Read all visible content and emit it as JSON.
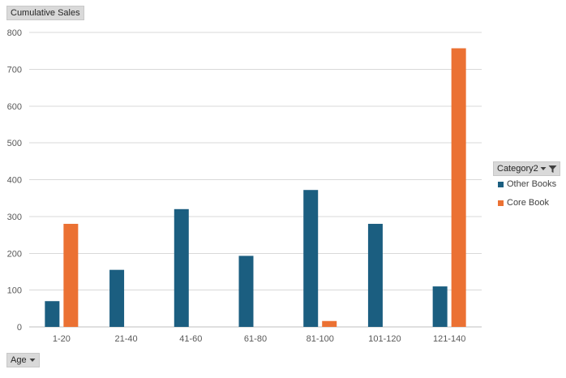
{
  "chart_data": {
    "type": "bar",
    "title": "",
    "xlabel": "",
    "ylabel": "",
    "categories": [
      "1-20",
      "21-40",
      "41-60",
      "61-80",
      "81-100",
      "101-120",
      "121-140"
    ],
    "series": [
      {
        "name": "Other Books",
        "color": "#1b5e80",
        "values": [
          70,
          155,
          320,
          193,
          372,
          280,
          110
        ]
      },
      {
        "name": "Core Book",
        "color": "#eb7133",
        "values": [
          280,
          0,
          0,
          0,
          16,
          0,
          757
        ]
      }
    ],
    "ylim": [
      0,
      800
    ],
    "yticks": [
      0,
      100,
      200,
      300,
      400,
      500,
      600,
      700,
      800
    ],
    "grid": true,
    "legend_position": "right"
  },
  "pivot": {
    "values_field": "Cumulative Sales",
    "axis_field": "Age",
    "legend_field": "Category2",
    "axis_dropdown_icon": "triangle-down-icon",
    "legend_dropdown_icon": "triangle-down-icon",
    "legend_filter_icon": "funnel-filter-icon"
  },
  "colors": {
    "gridline": "#d9d9d9",
    "axis_line": "#bfbfbf",
    "field_button_bg": "#d9d9d9"
  }
}
